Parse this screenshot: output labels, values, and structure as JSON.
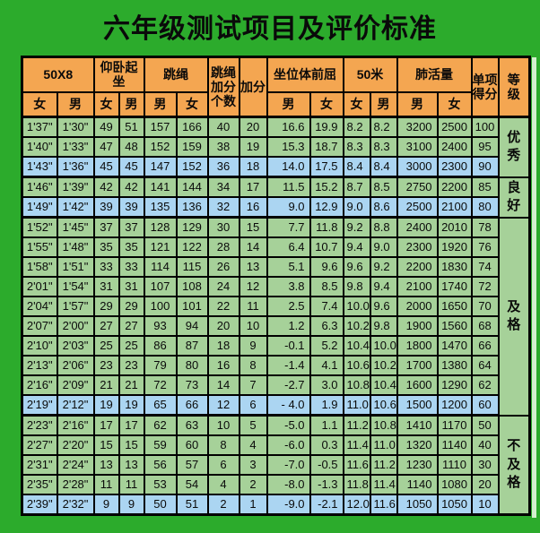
{
  "title": "六年级测试项目及评价标准",
  "colors": {
    "bg": "#2cab2c",
    "header-orange": "#f4a651",
    "row-green": "#a6d199",
    "row-blue": "#abd5f2",
    "border": "#000000"
  },
  "table": {
    "header_groups": [
      {
        "label": "50X8"
      },
      {
        "label": "仰卧起坐"
      },
      {
        "label": "跳绳"
      },
      {
        "label": "跳绳\n加分\n个数"
      },
      {
        "label": "加分"
      },
      {
        "label": "坐位体前屈"
      },
      {
        "label": "50米"
      },
      {
        "label": "肺活量"
      },
      {
        "label": "单项\n得分"
      },
      {
        "label": "等\n级"
      }
    ],
    "gender_row": [
      "女",
      "男",
      "女",
      "男",
      "男",
      "女",
      "男",
      "女",
      "女",
      "男",
      "男",
      "女"
    ],
    "col_keys": [
      "50x8-f",
      "50x8-m",
      "situp-f",
      "situp-m",
      "rope-m",
      "rope-f",
      "rope-bonus-count",
      "bonus",
      "sitreach-m",
      "sitreach-f",
      "50m-f",
      "50m-m",
      "lung-m",
      "lung-f",
      "score"
    ],
    "rows": [
      {
        "v": [
          "1'37\"",
          "1'30\"",
          "49",
          "51",
          "157",
          "166",
          "40",
          "20",
          "16.6",
          "19.9",
          "8.2",
          "8.2",
          "3200",
          "2500",
          "100"
        ],
        "hl": false
      },
      {
        "v": [
          "1'40\"",
          "1'33\"",
          "47",
          "48",
          "152",
          "159",
          "38",
          "19",
          "15.3",
          "18.7",
          "8.3",
          "8.3",
          "3100",
          "2400",
          "95"
        ],
        "hl": false
      },
      {
        "v": [
          "1'43\"",
          "1'36\"",
          "45",
          "45",
          "147",
          "152",
          "36",
          "18",
          "14.0",
          "17.5",
          "8.4",
          "8.4",
          "3000",
          "2300",
          "90"
        ],
        "hl": true
      },
      {
        "v": [
          "1'46\"",
          "1'39\"",
          "42",
          "42",
          "141",
          "144",
          "34",
          "17",
          "11.5",
          "15.2",
          "8.7",
          "8.5",
          "2750",
          "2200",
          "85"
        ],
        "hl": false
      },
      {
        "v": [
          "1'49\"",
          "1'42\"",
          "39",
          "39",
          "135",
          "136",
          "32",
          "16",
          "9.0",
          "12.9",
          "9.0",
          "8.6",
          "2500",
          "2100",
          "80"
        ],
        "hl": true
      },
      {
        "v": [
          "1'52\"",
          "1'45\"",
          "37",
          "37",
          "128",
          "129",
          "30",
          "15",
          "7.7",
          "11.8",
          "9.2",
          "8.8",
          "2400",
          "2010",
          "78"
        ],
        "hl": false
      },
      {
        "v": [
          "1'55\"",
          "1'48\"",
          "35",
          "35",
          "121",
          "122",
          "28",
          "14",
          "6.4",
          "10.7",
          "9.4",
          "9.0",
          "2300",
          "1920",
          "76"
        ],
        "hl": false
      },
      {
        "v": [
          "1'58\"",
          "1'51\"",
          "33",
          "33",
          "114",
          "115",
          "26",
          "13",
          "5.1",
          "9.6",
          "9.6",
          "9.2",
          "2200",
          "1830",
          "74"
        ],
        "hl": false
      },
      {
        "v": [
          "2'01\"",
          "1'54\"",
          "31",
          "31",
          "107",
          "108",
          "24",
          "12",
          "3.8",
          "8.5",
          "9.8",
          "9.4",
          "2100",
          "1740",
          "72"
        ],
        "hl": false
      },
      {
        "v": [
          "2'04\"",
          "1'57\"",
          "29",
          "29",
          "100",
          "101",
          "22",
          "11",
          "2.5",
          "7.4",
          "10.0",
          "9.6",
          "2000",
          "1650",
          "70"
        ],
        "hl": false
      },
      {
        "v": [
          "2'07\"",
          "2'00\"",
          "27",
          "27",
          "93",
          "94",
          "20",
          "10",
          "1.2",
          "6.3",
          "10.2",
          "9.8",
          "1900",
          "1560",
          "68"
        ],
        "hl": false
      },
      {
        "v": [
          "2'10\"",
          "2'03\"",
          "25",
          "25",
          "86",
          "87",
          "18",
          "9",
          "-0.1",
          "5.2",
          "10.4",
          "10.0",
          "1800",
          "1470",
          "66"
        ],
        "hl": false
      },
      {
        "v": [
          "2'13\"",
          "2'06\"",
          "23",
          "23",
          "79",
          "80",
          "16",
          "8",
          "-1.4",
          "4.1",
          "10.6",
          "10.2",
          "1700",
          "1380",
          "64"
        ],
        "hl": false
      },
      {
        "v": [
          "2'16\"",
          "2'09\"",
          "21",
          "21",
          "72",
          "73",
          "14",
          "7",
          "-2.7",
          "3.0",
          "10.8",
          "10.4",
          "1600",
          "1290",
          "62"
        ],
        "hl": false
      },
      {
        "v": [
          "2'19\"",
          "2'12\"",
          "19",
          "19",
          "65",
          "66",
          "12",
          "6",
          "- 4.0",
          "1.9",
          "11.0",
          "10.6",
          "1500",
          "1200",
          "60"
        ],
        "hl": true
      },
      {
        "v": [
          "2'23\"",
          "2'16\"",
          "17",
          "17",
          "62",
          "63",
          "10",
          "5",
          "-5.0",
          "1.1",
          "11.2",
          "10.8",
          "1410",
          "1170",
          "50"
        ],
        "hl": false
      },
      {
        "v": [
          "2'27\"",
          "2'20\"",
          "15",
          "15",
          "59",
          "60",
          "8",
          "4",
          "-6.0",
          "0.3",
          "11.4",
          "11.0",
          "1320",
          "1140",
          "40"
        ],
        "hl": false
      },
      {
        "v": [
          "2'31\"",
          "2'24\"",
          "13",
          "13",
          "56",
          "57",
          "6",
          "3",
          "-7.0",
          "-0.5",
          "11.6",
          "11.2",
          "1230",
          "1110",
          "30"
        ],
        "hl": false
      },
      {
        "v": [
          "2'35\"",
          "2'28\"",
          "11",
          "11",
          "53",
          "54",
          "4",
          "2",
          "-8.0",
          "-1.3",
          "11.8",
          "11.4",
          "1140",
          "1080",
          "20"
        ],
        "hl": false
      },
      {
        "v": [
          "2'39\"",
          "2'32\"",
          "9",
          "9",
          "50",
          "51",
          "2",
          "1",
          "-9.0",
          "-2.1",
          "12.0",
          "11.6",
          "1050",
          "1050",
          "10"
        ],
        "hl": true
      }
    ],
    "group_end_rows": [
      2,
      4,
      14,
      19
    ],
    "grades": [
      {
        "label": "优\n秀",
        "span": 3
      },
      {
        "label": "良\n好",
        "span": 2
      },
      {
        "label": "及\n格",
        "span": 10
      },
      {
        "label": "不\n及\n格",
        "span": 5
      }
    ]
  }
}
